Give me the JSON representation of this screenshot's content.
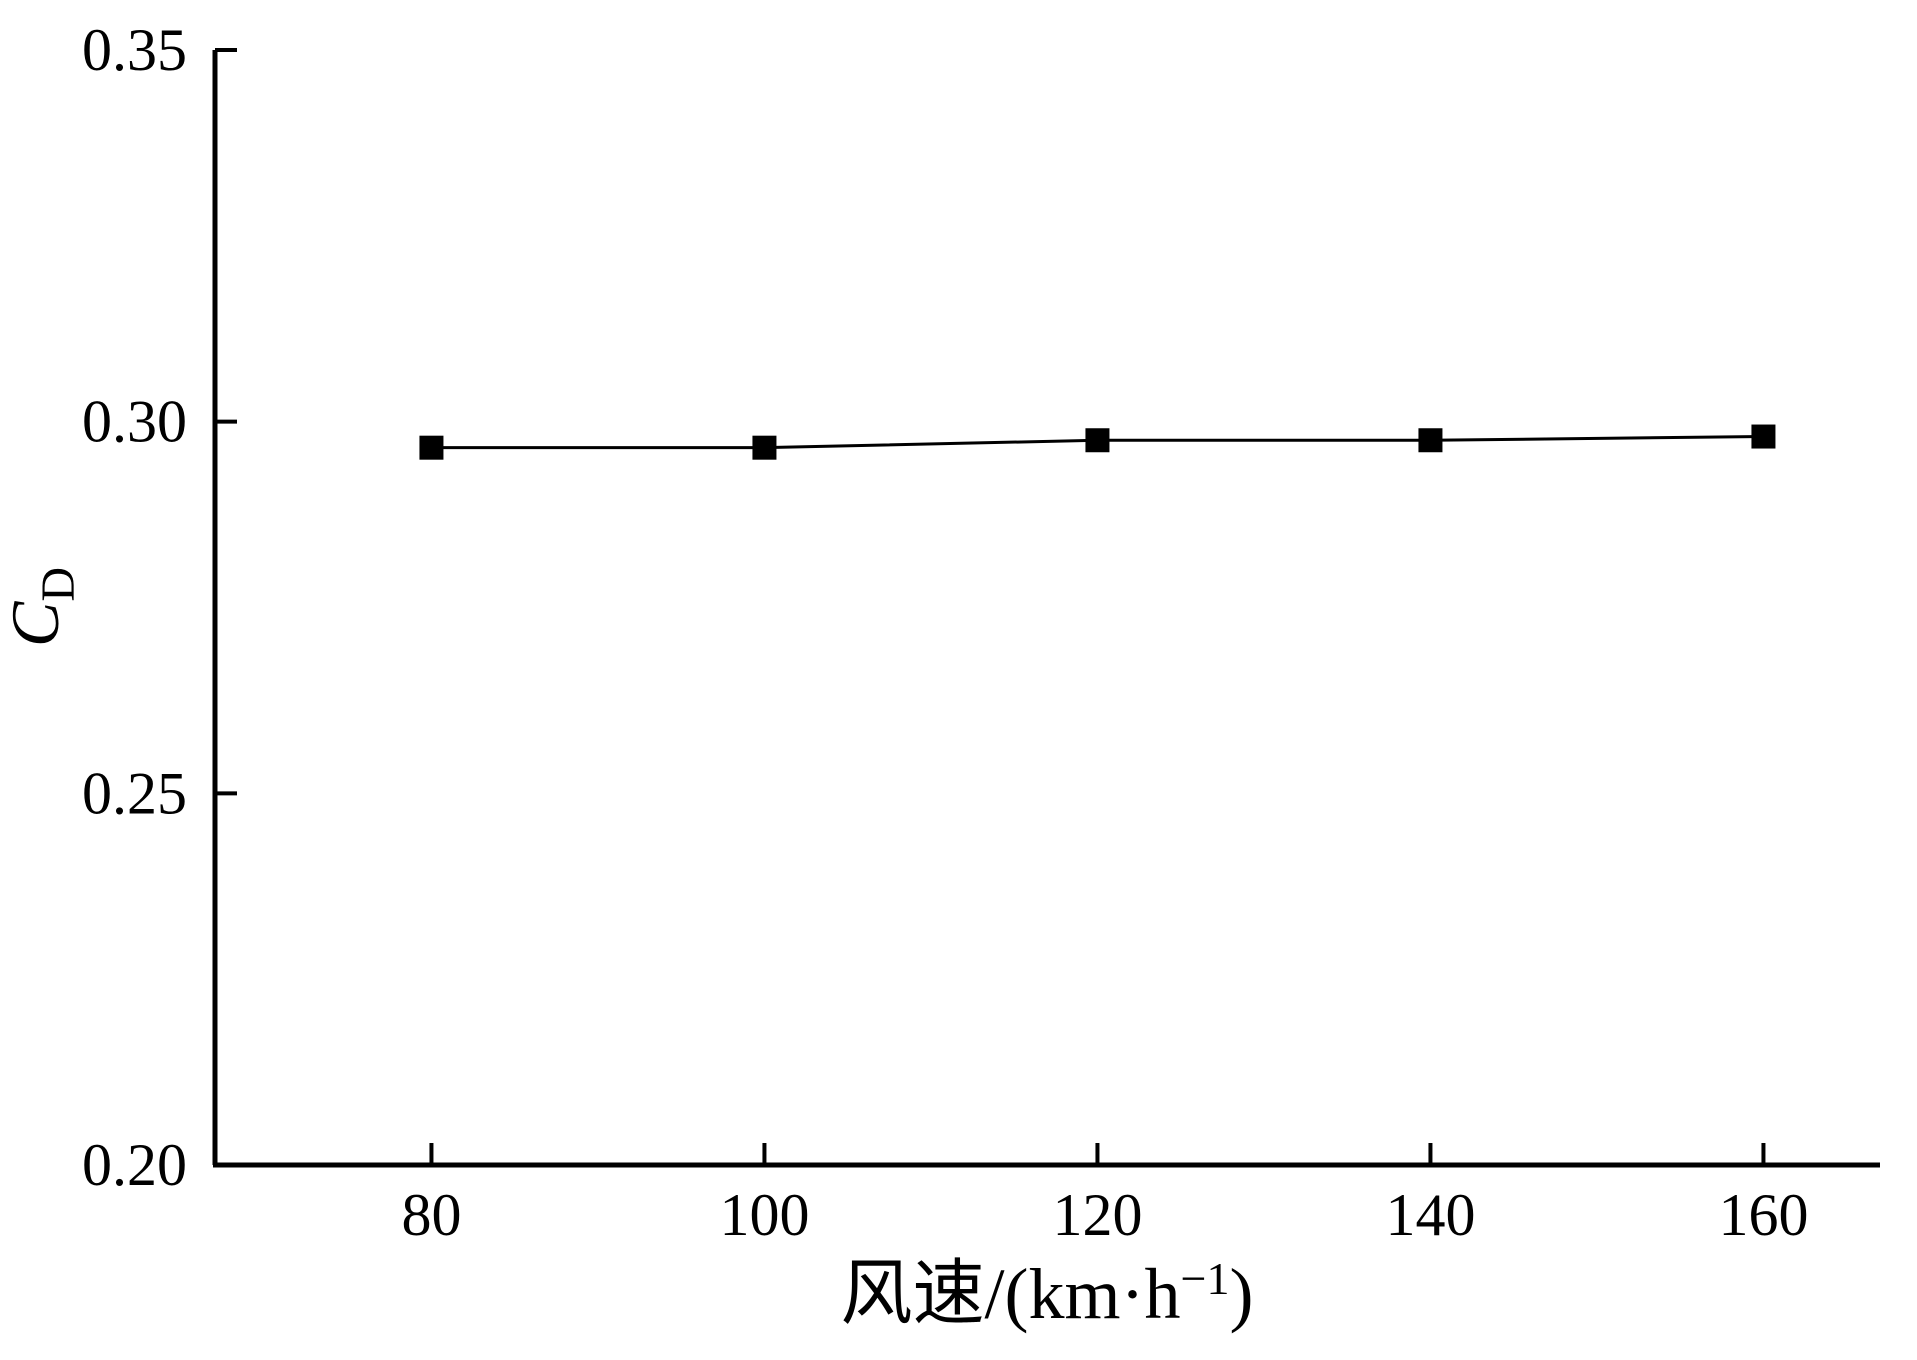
{
  "chart_data": {
    "type": "line",
    "title": "",
    "xlabel": {
      "pre": "风速/(km·h",
      "sup": "−1",
      "post": ")"
    },
    "ylabel": {
      "base": "C",
      "sub": "D"
    },
    "x": [
      80,
      100,
      120,
      140,
      160
    ],
    "series": [
      {
        "name": "CD",
        "values": [
          0.2965,
          0.2965,
          0.2975,
          0.2975,
          0.298
        ],
        "color": "#000000",
        "marker": "square"
      }
    ],
    "xlim": [
      67,
      167
    ],
    "ylim": [
      0.2,
      0.35
    ],
    "xticks": [
      80,
      100,
      120,
      140,
      160
    ],
    "xtick_labels": [
      "80",
      "100",
      "120",
      "140",
      "160"
    ],
    "yticks": [
      0.2,
      0.25,
      0.3,
      0.35
    ],
    "ytick_labels": [
      "0.20",
      "0.25",
      "0.30",
      "0.35"
    ],
    "grid": false,
    "legend": "none",
    "axis_color": "#000000",
    "background": "#ffffff"
  }
}
